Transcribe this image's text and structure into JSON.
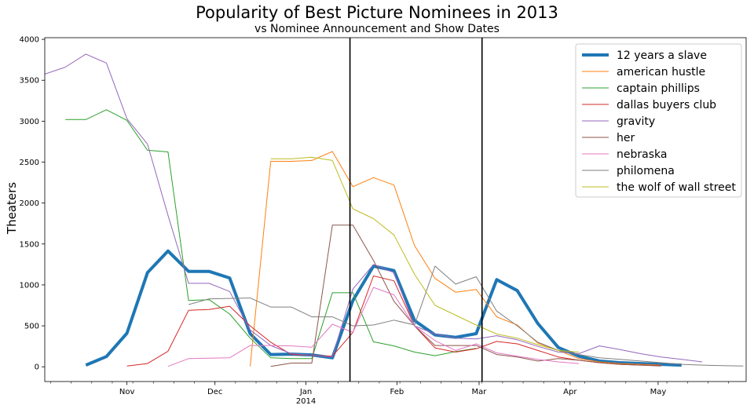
{
  "chart_data": {
    "type": "line",
    "title": "Popularity of Best Picture Nominees in 2013",
    "subtitle": "vs Nominee Announcement and Show Dates",
    "xlabel": "",
    "ylabel": "Theaters",
    "ylim": [
      -180,
      4020
    ],
    "xlim": [
      "2013-10-04",
      "2014-05-31"
    ],
    "yticks": [
      0,
      500,
      1000,
      1500,
      2000,
      2500,
      3000,
      3500,
      4000
    ],
    "xticks": [
      {
        "date": "2013-11-01",
        "label": "Nov",
        "sublabel": ""
      },
      {
        "date": "2013-12-01",
        "label": "Dec",
        "sublabel": ""
      },
      {
        "date": "2014-01-01",
        "label": "Jan",
        "sublabel": "2014"
      },
      {
        "date": "2014-02-01",
        "label": "Feb",
        "sublabel": ""
      },
      {
        "date": "2014-03-01",
        "label": "Mar",
        "sublabel": ""
      },
      {
        "date": "2014-04-01",
        "label": "Apr",
        "sublabel": ""
      },
      {
        "date": "2014-05-01",
        "label": "May",
        "sublabel": ""
      }
    ],
    "vlines": [
      {
        "date": "2014-01-16",
        "color": "#000000"
      },
      {
        "date": "2014-03-02",
        "color": "#000000"
      }
    ],
    "legend_position": "top-right",
    "grid": false,
    "series": [
      {
        "name": "12 years a slave",
        "color": "#1f77b4",
        "width": 4,
        "x": [
          "2013-10-18",
          "2013-10-25",
          "2013-11-01",
          "2013-11-08",
          "2013-11-15",
          "2013-11-22",
          "2013-11-29",
          "2013-12-06",
          "2013-12-13",
          "2013-12-20",
          "2013-12-27",
          "2014-01-03",
          "2014-01-10",
          "2014-01-17",
          "2014-01-24",
          "2014-01-31",
          "2014-02-07",
          "2014-02-14",
          "2014-02-21",
          "2014-02-28",
          "2014-03-07",
          "2014-03-14",
          "2014-03-21",
          "2014-03-28",
          "2014-04-04",
          "2014-04-11",
          "2014-04-18",
          "2014-04-25",
          "2014-05-02",
          "2014-05-09"
        ],
        "y": [
          20,
          125,
          410,
          1150,
          1415,
          1165,
          1165,
          1085,
          405,
          150,
          155,
          145,
          110,
          810,
          1230,
          1175,
          565,
          390,
          360,
          405,
          1065,
          930,
          530,
          235,
          130,
          70,
          50,
          40,
          30,
          20
        ]
      },
      {
        "name": "american hustle",
        "color": "#ff7f0e",
        "width": 1,
        "x": [
          "2013-12-13",
          "2013-12-20",
          "2013-12-27",
          "2014-01-03",
          "2014-01-10",
          "2014-01-17",
          "2014-01-24",
          "2014-01-31",
          "2014-02-07",
          "2014-02-14",
          "2014-02-21",
          "2014-02-28",
          "2014-03-07",
          "2014-03-14",
          "2014-03-21",
          "2014-03-28",
          "2014-04-04",
          "2014-04-11",
          "2014-04-18",
          "2014-04-25",
          "2014-05-02"
        ],
        "y": [
          5,
          2510,
          2510,
          2520,
          2630,
          2200,
          2310,
          2220,
          1480,
          1080,
          910,
          945,
          610,
          510,
          290,
          200,
          100,
          60,
          40,
          30,
          20
        ]
      },
      {
        "name": "captain phillips",
        "color": "#2ca02c",
        "width": 1,
        "x": [
          "2013-10-11",
          "2013-10-18",
          "2013-10-25",
          "2013-11-01",
          "2013-11-08",
          "2013-11-15",
          "2013-11-22",
          "2013-11-29",
          "2013-12-06",
          "2013-12-13",
          "2013-12-20",
          "2013-12-27",
          "2014-01-03",
          "2014-01-10",
          "2014-01-17",
          "2014-01-24",
          "2014-01-31",
          "2014-02-07",
          "2014-02-14",
          "2014-02-21",
          "2014-02-28"
        ],
        "y": [
          3020,
          3020,
          3140,
          3010,
          2645,
          2625,
          810,
          820,
          645,
          350,
          110,
          100,
          100,
          905,
          905,
          305,
          255,
          180,
          135,
          185,
          225
        ]
      },
      {
        "name": "dallas buyers club",
        "color": "#d62728",
        "width": 1,
        "x": [
          "2013-11-01",
          "2013-11-08",
          "2013-11-15",
          "2013-11-22",
          "2013-11-29",
          "2013-12-06",
          "2013-12-13",
          "2013-12-20",
          "2013-12-27",
          "2014-01-03",
          "2014-01-10",
          "2014-01-17",
          "2014-01-24",
          "2014-01-31",
          "2014-02-07",
          "2014-02-14",
          "2014-02-21",
          "2014-02-28",
          "2014-03-07",
          "2014-03-14",
          "2014-03-21",
          "2014-03-28",
          "2014-04-04",
          "2014-04-11",
          "2014-04-18",
          "2014-04-25",
          "2014-05-02"
        ],
        "y": [
          10,
          40,
          190,
          690,
          700,
          740,
          500,
          300,
          150,
          140,
          130,
          420,
          1110,
          1050,
          500,
          230,
          180,
          220,
          310,
          280,
          200,
          120,
          80,
          50,
          30,
          20,
          15
        ]
      },
      {
        "name": "gravity",
        "color": "#9467bd",
        "width": 1,
        "x": [
          "2013-10-04",
          "2013-10-11",
          "2013-10-18",
          "2013-10-25",
          "2013-11-01",
          "2013-11-08",
          "2013-11-15",
          "2013-11-22",
          "2013-11-29",
          "2013-12-06",
          "2013-12-13",
          "2013-12-20",
          "2013-12-27",
          "2014-01-03",
          "2014-01-10",
          "2014-01-17",
          "2014-01-24",
          "2014-01-31",
          "2014-02-07",
          "2014-02-14",
          "2014-02-21",
          "2014-02-28",
          "2014-03-07",
          "2014-03-14",
          "2014-03-21",
          "2014-03-28",
          "2014-04-04",
          "2014-04-11",
          "2014-04-18",
          "2014-04-25",
          "2014-05-02",
          "2014-05-09",
          "2014-05-16"
        ],
        "y": [
          3575,
          3660,
          3820,
          3710,
          3030,
          2720,
          1850,
          1020,
          1020,
          920,
          450,
          260,
          160,
          140,
          120,
          950,
          1250,
          1150,
          500,
          400,
          350,
          340,
          380,
          330,
          250,
          180,
          160,
          255,
          210,
          160,
          120,
          90,
          60
        ]
      },
      {
        "name": "her",
        "color": "#8c564b",
        "width": 1,
        "x": [
          "2013-12-20",
          "2013-12-27",
          "2014-01-03",
          "2014-01-10",
          "2014-01-17",
          "2014-01-24",
          "2014-01-31",
          "2014-02-07",
          "2014-02-14",
          "2014-02-21",
          "2014-02-28",
          "2014-03-07",
          "2014-03-14",
          "2014-03-21",
          "2014-03-28",
          "2014-04-04",
          "2014-04-11",
          "2014-04-18",
          "2014-04-25",
          "2014-05-02"
        ],
        "y": [
          5,
          45,
          45,
          1730,
          1730,
          1300,
          800,
          500,
          260,
          260,
          260,
          150,
          120,
          70,
          100,
          80,
          50,
          30,
          20,
          10
        ]
      },
      {
        "name": "nebraska",
        "color": "#e377c2",
        "width": 1,
        "x": [
          "2013-11-15",
          "2013-11-22",
          "2013-11-29",
          "2013-12-06",
          "2013-12-13",
          "2013-12-20",
          "2013-12-27",
          "2014-01-03",
          "2014-01-10",
          "2014-01-17",
          "2014-01-24",
          "2014-01-31",
          "2014-02-07",
          "2014-02-14",
          "2014-02-21",
          "2014-02-28",
          "2014-03-07",
          "2014-03-14",
          "2014-03-21",
          "2014-03-28",
          "2014-04-04"
        ],
        "y": [
          5,
          100,
          105,
          110,
          260,
          260,
          255,
          240,
          520,
          420,
          970,
          880,
          500,
          320,
          200,
          280,
          170,
          130,
          90,
          60,
          40
        ]
      },
      {
        "name": "philomena",
        "color": "#7f7f7f",
        "width": 1,
        "x": [
          "2013-11-22",
          "2013-11-29",
          "2013-12-06",
          "2013-12-13",
          "2013-12-20",
          "2013-12-27",
          "2014-01-03",
          "2014-01-10",
          "2014-01-17",
          "2014-01-24",
          "2014-01-31",
          "2014-02-07",
          "2014-02-14",
          "2014-02-21",
          "2014-02-28",
          "2014-03-07",
          "2014-03-14",
          "2014-03-21",
          "2014-03-28",
          "2014-04-04",
          "2014-04-11",
          "2014-04-18",
          "2014-04-25",
          "2014-05-02",
          "2014-05-09",
          "2014-05-16",
          "2014-05-23",
          "2014-05-30"
        ],
        "y": [
          760,
          830,
          835,
          840,
          730,
          730,
          610,
          610,
          500,
          510,
          570,
          510,
          1230,
          1010,
          1100,
          680,
          500,
          300,
          200,
          150,
          110,
          90,
          70,
          50,
          30,
          20,
          15,
          10
        ]
      },
      {
        "name": "the wolf of wall street",
        "color": "#bcbd22",
        "width": 1,
        "x": [
          "2013-12-20",
          "2013-12-27",
          "2014-01-03",
          "2014-01-10",
          "2014-01-17",
          "2014-01-24",
          "2014-01-31",
          "2014-02-07",
          "2014-02-14",
          "2014-02-21",
          "2014-02-28",
          "2014-03-07",
          "2014-03-14",
          "2014-03-21",
          "2014-03-28",
          "2014-04-04"
        ],
        "y": [
          2540,
          2540,
          2560,
          2520,
          1930,
          1810,
          1610,
          1130,
          750,
          630,
          510,
          400,
          350,
          270,
          200,
          180
        ]
      }
    ]
  }
}
